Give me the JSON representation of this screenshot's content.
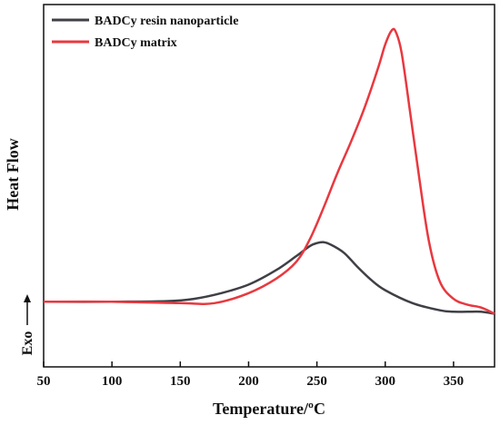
{
  "chart_data": {
    "type": "line",
    "title": "",
    "xlabel": "Temperature/ºC",
    "ylabel": "Heat Flow",
    "y_annotation": "Exo",
    "xlim": [
      50,
      380
    ],
    "xticks": [
      50,
      100,
      150,
      200,
      250,
      300,
      350
    ],
    "xtick_labels": [
      "50",
      "100",
      "150",
      "200",
      "250",
      "300",
      "350"
    ],
    "y_axis_values_shown": false,
    "grid": false,
    "legend_position": "top-left",
    "series": [
      {
        "name": "BADCy resin nanoparticle",
        "color": "#3f3f46",
        "x": [
          50,
          100,
          140,
          160,
          180,
          200,
          220,
          235,
          245,
          250,
          255,
          260,
          270,
          280,
          290,
          300,
          320,
          340,
          350,
          360,
          370,
          380
        ],
        "y": [
          0.05,
          0.05,
          0.052,
          0.06,
          0.08,
          0.11,
          0.16,
          0.21,
          0.245,
          0.255,
          0.258,
          0.25,
          0.22,
          0.17,
          0.125,
          0.09,
          0.045,
          0.02,
          0.015,
          0.015,
          0.015,
          0.008
        ]
      },
      {
        "name": "BADCy matrix",
        "color": "#e8383f",
        "x": [
          50,
          100,
          150,
          175,
          200,
          220,
          235,
          245,
          255,
          265,
          275,
          285,
          295,
          300,
          305,
          308,
          312,
          318,
          325,
          332,
          340,
          350,
          360,
          370,
          380
        ],
        "y": [
          0.05,
          0.05,
          0.045,
          0.045,
          0.08,
          0.13,
          0.19,
          0.27,
          0.38,
          0.5,
          0.61,
          0.73,
          0.87,
          0.95,
          1.0,
          0.99,
          0.92,
          0.72,
          0.48,
          0.26,
          0.12,
          0.06,
          0.04,
          0.03,
          0.008
        ]
      }
    ]
  }
}
